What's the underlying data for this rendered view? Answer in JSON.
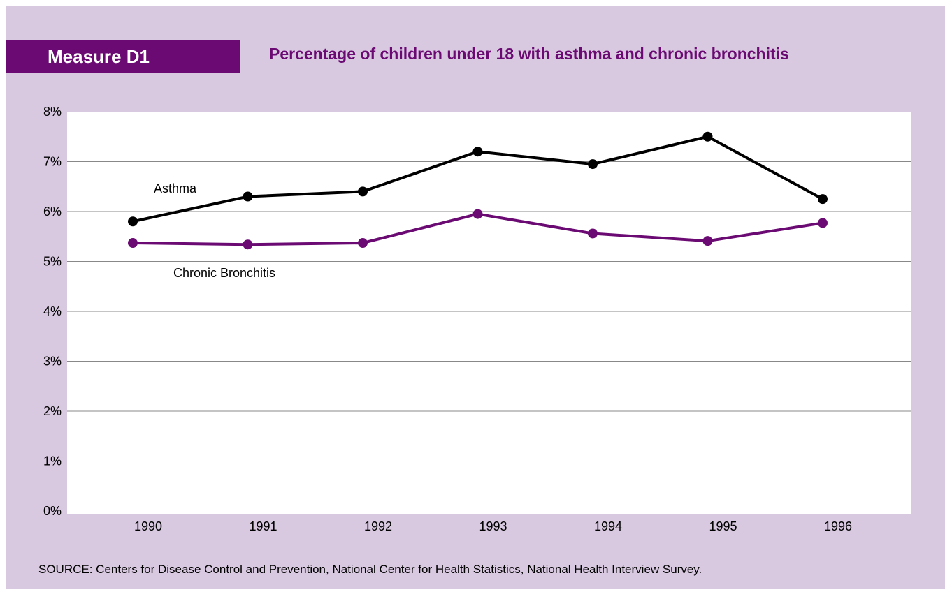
{
  "header": {
    "measure_label": "Measure D1"
  },
  "footer": {
    "source": "SOURCE:  Centers for Disease Control and Prevention, National Center for Health Statistics, National Health Interview Survey."
  },
  "colors": {
    "panel_bg": "#d8c8e0",
    "accent": "#6a0a72",
    "asthma_line": "#000000",
    "bronchitis_line": "#6a0a72"
  },
  "chart_data": {
    "type": "line",
    "title": "Percentage of children under 18 with asthma and chronic bronchitis",
    "xlabel": "",
    "ylabel": "",
    "categories": [
      "1990",
      "1991",
      "1992",
      "1993",
      "1994",
      "1995",
      "1996"
    ],
    "ylim": [
      0,
      8
    ],
    "yticks": [
      "0%",
      "1%",
      "2%",
      "3%",
      "4%",
      "5%",
      "6%",
      "7%",
      "8%"
    ],
    "grid": true,
    "legend": "inline labels",
    "series": [
      {
        "name": "Asthma",
        "values": [
          5.8,
          6.3,
          6.4,
          7.2,
          6.95,
          7.5,
          6.25
        ]
      },
      {
        "name": "Chronic Bronchitis",
        "values": [
          5.37,
          5.34,
          5.37,
          5.95,
          5.56,
          5.41,
          5.77
        ]
      }
    ]
  }
}
